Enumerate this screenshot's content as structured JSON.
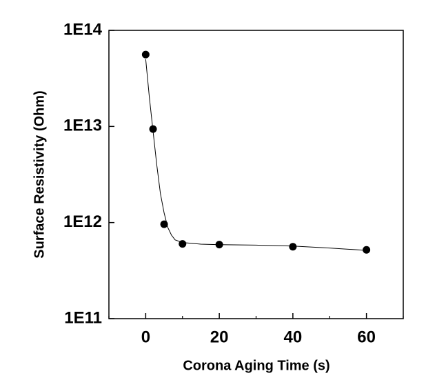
{
  "chart_data": {
    "type": "scatter",
    "x_label": "Corona Aging Time (s)",
    "y_label": "Surface Resistivity (Ohm)",
    "y_scale": "log",
    "xlim": [
      -10,
      70
    ],
    "xticks": [
      0,
      20,
      40,
      60
    ],
    "xminorticks": [
      -10,
      10,
      30,
      50,
      70
    ],
    "ylim": [
      100000000000,
      100000000000000
    ],
    "yticks": [
      {
        "value": 100000000000,
        "label": "1E11"
      },
      {
        "value": 1000000000000,
        "label": "1E12"
      },
      {
        "value": 10000000000000,
        "label": "1E13"
      },
      {
        "value": 100000000000000,
        "label": "1E14"
      }
    ],
    "series": [
      {
        "mode": "markers",
        "color": "#000000",
        "x": [
          0,
          2,
          5,
          10,
          20,
          40,
          60
        ],
        "values": [
          56000000000000,
          9400000000000,
          960000000000,
          600000000000,
          590000000000,
          560000000000,
          520000000000
        ]
      },
      {
        "mode": "line",
        "color": "#000000",
        "x": [
          0,
          1,
          2,
          3,
          4,
          5,
          6,
          7,
          8,
          10,
          15,
          20,
          30,
          40,
          50,
          60
        ],
        "values": [
          50000000000000,
          20000000000000,
          8900000000000,
          4000000000000,
          2000000000000,
          1260000000000,
          890000000000,
          740000000000,
          660000000000,
          620000000000,
          596000000000,
          589000000000,
          582000000000,
          569000000000,
          543000000000,
          513000000000
        ]
      }
    ]
  }
}
